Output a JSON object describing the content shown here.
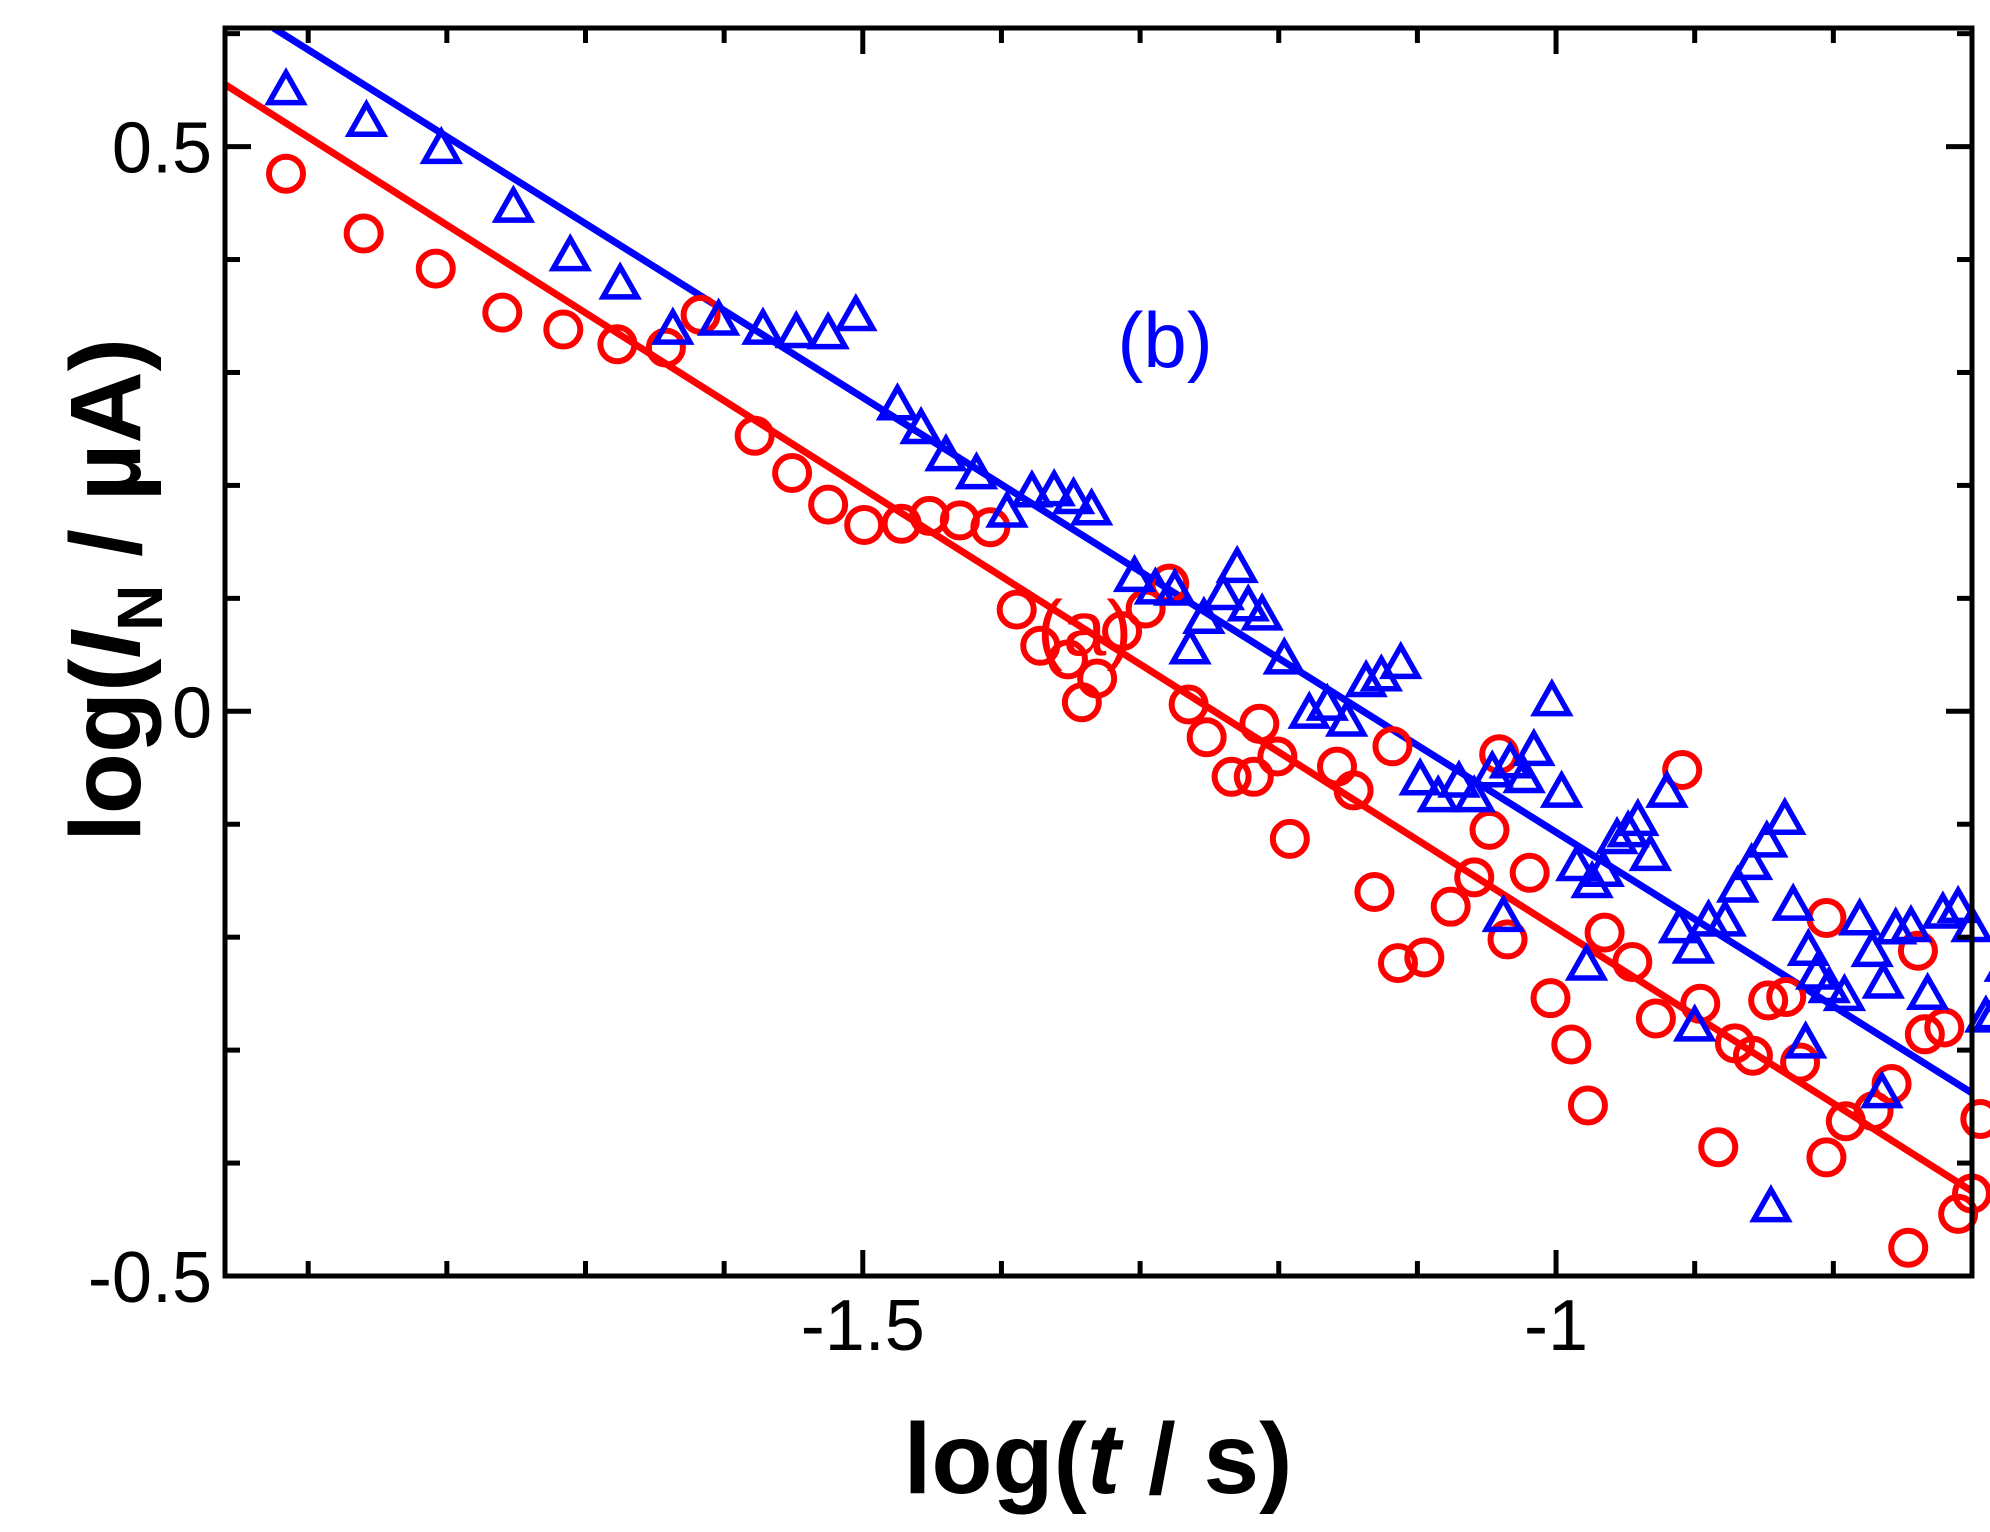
{
  "chart_data": {
    "type": "scatter",
    "title": "",
    "xlabel": {
      "prefix": "log(",
      "var": "t",
      "suffix": " / s)"
    },
    "ylabel": {
      "prefix": "log(",
      "var": "I",
      "sub": "N",
      "suffix": " / µA)"
    },
    "xlim": [
      -1.96,
      -0.7
    ],
    "ylim": [
      -0.5,
      0.605
    ],
    "xticks": [
      -1.5,
      -1.0
    ],
    "xtick_labels": [
      "-1.5",
      "-1"
    ],
    "yticks": [
      -0.5,
      0,
      0.5
    ],
    "ytick_labels": [
      "-0.5",
      "0",
      "0.5"
    ],
    "grid": false,
    "series": [
      {
        "name": "(a)",
        "label": "(a)",
        "color": "#ff0000",
        "marker": "circle",
        "fit": {
          "x": [
            -1.96,
            -0.7
          ],
          "y": [
            0.555,
            -0.425
          ]
        },
        "label_pos": {
          "x": -1.34,
          "y": 0.05
        },
        "points": [
          [
            -1.916,
            0.476
          ],
          [
            -1.86,
            0.423
          ],
          [
            -1.808,
            0.392
          ],
          [
            -1.76,
            0.353
          ],
          [
            -1.716,
            0.338
          ],
          [
            -1.677,
            0.325
          ],
          [
            -1.642,
            0.322
          ],
          [
            -1.617,
            0.351
          ],
          [
            -1.578,
            0.244
          ],
          [
            -1.551,
            0.211
          ],
          [
            -1.525,
            0.183
          ],
          [
            -1.499,
            0.165
          ],
          [
            -1.472,
            0.166
          ],
          [
            -1.452,
            0.173
          ],
          [
            -1.43,
            0.169
          ],
          [
            -1.408,
            0.163
          ],
          [
            -1.389,
            0.09
          ],
          [
            -1.372,
            0.058
          ],
          [
            -1.352,
            0.046
          ],
          [
            -1.331,
            0.029
          ],
          [
            -1.342,
            0.008
          ],
          [
            -1.313,
            0.071
          ],
          [
            -1.296,
            0.091
          ],
          [
            -1.279,
            0.113
          ],
          [
            -1.265,
            0.006
          ],
          [
            -1.252,
            -0.023
          ],
          [
            -1.234,
            -0.058
          ],
          [
            -1.218,
            -0.058
          ],
          [
            -1.214,
            -0.011
          ],
          [
            -1.201,
            -0.04
          ],
          [
            -1.192,
            -0.113
          ],
          [
            -1.158,
            -0.049
          ],
          [
            -1.146,
            -0.07
          ],
          [
            -1.131,
            -0.16
          ],
          [
            -1.114,
            -0.223
          ],
          [
            -1.095,
            -0.218
          ],
          [
            -1.076,
            -0.173
          ],
          [
            -1.059,
            -0.147
          ],
          [
            -1.048,
            -0.105
          ],
          [
            -1.035,
            -0.202
          ],
          [
            -1.019,
            -0.143
          ],
          [
            -1.004,
            -0.254
          ],
          [
            -0.989,
            -0.295
          ],
          [
            -0.977,
            -0.349
          ],
          [
            -0.965,
            -0.196
          ],
          [
            -0.945,
            -0.222
          ],
          [
            -0.928,
            -0.272
          ],
          [
            -0.909,
            -0.052
          ],
          [
            -0.896,
            -0.259
          ],
          [
            -0.883,
            -0.386
          ],
          [
            -0.871,
            -0.294
          ],
          [
            -0.858,
            -0.305
          ],
          [
            -0.847,
            -0.256
          ],
          [
            -0.834,
            -0.253
          ],
          [
            -0.824,
            -0.311
          ],
          [
            -0.805,
            -0.395
          ],
          [
            -0.791,
            -0.363
          ],
          [
            -0.771,
            -0.354
          ],
          [
            -0.758,
            -0.33
          ],
          [
            -0.746,
            -0.475
          ],
          [
            -0.739,
            -0.212
          ],
          [
            -0.734,
            -0.286
          ],
          [
            -0.72,
            -0.28
          ],
          [
            -0.71,
            -0.445
          ],
          [
            -0.7,
            -0.427
          ],
          [
            -0.694,
            -0.361
          ],
          [
            -0.805,
            -0.183
          ],
          [
            -1.118,
            -0.031
          ],
          [
            -1.041,
            -0.038
          ]
        ]
      },
      {
        "name": "(b)",
        "label": "(b)",
        "color": "#0000ff",
        "marker": "triangle",
        "fit": {
          "x": [
            -1.925,
            -0.7
          ],
          "y": [
            0.605,
            -0.338
          ]
        },
        "label_pos": {
          "x": -1.282,
          "y": 0.305
        },
        "points": [
          [
            -1.916,
            0.549
          ],
          [
            -1.858,
            0.521
          ],
          [
            -1.804,
            0.497
          ],
          [
            -1.752,
            0.445
          ],
          [
            -1.711,
            0.402
          ],
          [
            -1.675,
            0.377
          ],
          [
            -1.637,
            0.337
          ],
          [
            -1.604,
            0.345
          ],
          [
            -1.572,
            0.337
          ],
          [
            -1.548,
            0.334
          ],
          [
            -1.525,
            0.333
          ],
          [
            -1.505,
            0.349
          ],
          [
            -1.475,
            0.27
          ],
          [
            -1.458,
            0.249
          ],
          [
            -1.44,
            0.225
          ],
          [
            -1.418,
            0.209
          ],
          [
            -1.396,
            0.175
          ],
          [
            -1.378,
            0.193
          ],
          [
            -1.362,
            0.194
          ],
          [
            -1.348,
            0.187
          ],
          [
            -1.335,
            0.177
          ],
          [
            -1.304,
            0.118
          ],
          [
            -1.289,
            0.107
          ],
          [
            -1.275,
            0.106
          ],
          [
            -1.264,
            0.054
          ],
          [
            -1.254,
            0.081
          ],
          [
            -1.24,
            0.102
          ],
          [
            -1.23,
            0.126
          ],
          [
            -1.222,
            0.092
          ],
          [
            -1.212,
            0.084
          ],
          [
            -1.196,
            0.045
          ],
          [
            -1.178,
            -0.003
          ],
          [
            -1.165,
            0.004
          ],
          [
            -1.151,
            -0.01
          ],
          [
            -1.137,
            0.025
          ],
          [
            -1.126,
            0.03
          ],
          [
            -1.112,
            0.041
          ],
          [
            -1.098,
            -0.062
          ],
          [
            -1.085,
            -0.077
          ],
          [
            -1.07,
            -0.064
          ],
          [
            -1.059,
            -0.077
          ],
          [
            -1.046,
            -0.055
          ],
          [
            -1.033,
            -0.047
          ],
          [
            -1.023,
            -0.06
          ],
          [
            -1.016,
            -0.036
          ],
          [
            -1.003,
            0.008
          ],
          [
            -0.996,
            -0.073
          ],
          [
            -0.985,
            -0.138
          ],
          [
            -0.974,
            -0.153
          ],
          [
            -0.966,
            -0.143
          ],
          [
            -0.956,
            -0.114
          ],
          [
            -0.948,
            -0.108
          ],
          [
            -0.941,
            -0.098
          ],
          [
            -0.932,
            -0.129
          ],
          [
            -0.92,
            -0.073
          ],
          [
            -0.911,
            -0.193
          ],
          [
            -0.901,
            -0.211
          ],
          [
            -0.89,
            -0.187
          ],
          [
            -0.878,
            -0.187
          ],
          [
            -0.869,
            -0.157
          ],
          [
            -0.859,
            -0.137
          ],
          [
            -0.848,
            -0.117
          ],
          [
            -0.835,
            -0.097
          ],
          [
            -0.829,
            -0.173
          ],
          [
            -0.818,
            -0.213
          ],
          [
            -0.812,
            -0.234
          ],
          [
            -0.803,
            -0.246
          ],
          [
            -0.792,
            -0.253
          ],
          [
            -0.781,
            -0.186
          ],
          [
            -0.772,
            -0.214
          ],
          [
            -0.764,
            -0.242
          ],
          [
            -0.755,
            -0.194
          ],
          [
            -0.744,
            -0.192
          ],
          [
            -0.732,
            -0.252
          ],
          [
            -0.721,
            -0.18
          ],
          [
            -0.71,
            -0.175
          ],
          [
            -0.7,
            -0.192
          ],
          [
            -0.69,
            -0.272
          ],
          [
            -0.684,
            -0.27
          ],
          [
            -0.676,
            -0.227
          ],
          [
            -1.038,
            -0.183
          ],
          [
            -0.978,
            -0.226
          ],
          [
            -0.9,
            -0.28
          ],
          [
            -0.845,
            -0.44
          ],
          [
            -0.82,
            -0.295
          ],
          [
            -0.765,
            -0.339
          ]
        ]
      }
    ]
  }
}
